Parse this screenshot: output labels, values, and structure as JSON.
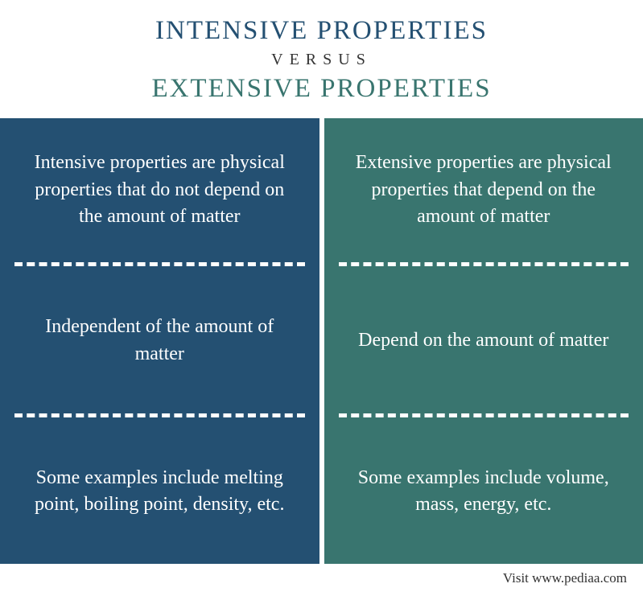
{
  "header": {
    "title1": "INTENSIVE PROPERTIES",
    "versus": "VERSUS",
    "title2": "EXTENSIVE PROPERTIES"
  },
  "columns": {
    "left": {
      "bg_color": "#245072",
      "title_color": "#245072",
      "cells": [
        "Intensive properties are physical properties that do not depend on the amount of matter",
        "Independent of the amount of matter",
        "Some examples include melting point, boiling point, density, etc."
      ]
    },
    "right": {
      "bg_color": "#39756f",
      "title_color": "#39756f",
      "cells": [
        "Extensive properties are physical properties that depend on the amount of matter",
        "Depend on the amount of matter",
        "Some examples include volume, mass, energy, etc."
      ]
    }
  },
  "footer": "Visit www.pediaa.com"
}
